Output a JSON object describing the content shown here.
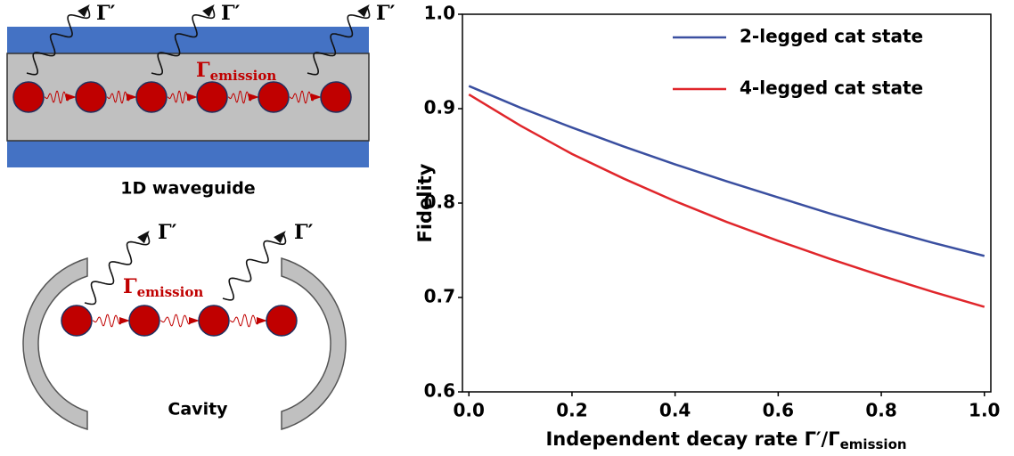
{
  "diagrams": {
    "waveguide": {
      "caption": "1D waveguide",
      "decay_labels": [
        "Γ′",
        "Γ′",
        "Γ′"
      ],
      "emission_symbol": "Γ",
      "emission_subscript": "emission"
    },
    "cavity": {
      "caption": "Cavity",
      "decay_labels": [
        "Γ′",
        "Γ′"
      ],
      "emission_symbol": "Γ",
      "emission_subscript": "emission"
    }
  },
  "chart_data": {
    "type": "line",
    "xlabel": "Independent decay rate Γ′/Γ",
    "xlabel_subscript": "emission",
    "ylabel": "Fidelity",
    "x": [
      0,
      0.1,
      0.2,
      0.3,
      0.4,
      0.5,
      0.6,
      0.7,
      0.8,
      0.9,
      1.0
    ],
    "series": [
      {
        "name": "2-legged cat state",
        "color": "#3a4fa0",
        "values": [
          0.924,
          0.901,
          0.88,
          0.86,
          0.841,
          0.823,
          0.806,
          0.789,
          0.773,
          0.758,
          0.744
        ]
      },
      {
        "name": "4-legged cat state",
        "color": "#e0262b",
        "values": [
          0.915,
          0.882,
          0.852,
          0.826,
          0.802,
          0.78,
          0.76,
          0.741,
          0.723,
          0.706,
          0.69
        ]
      }
    ],
    "xlim": [
      -0.0125,
      1.0125
    ],
    "ylim": [
      0.6,
      1.0
    ],
    "xticks": [
      {
        "value": 0,
        "label": "0.0"
      },
      0.2,
      0.4,
      0.6,
      0.8,
      {
        "value": 1,
        "label": "1.0"
      }
    ],
    "yticks": [
      {
        "value": 0.6,
        "label": "0.6"
      },
      0.7,
      0.8,
      0.9,
      {
        "value": 1,
        "label": "1.0"
      }
    ],
    "legend": "upper right"
  }
}
